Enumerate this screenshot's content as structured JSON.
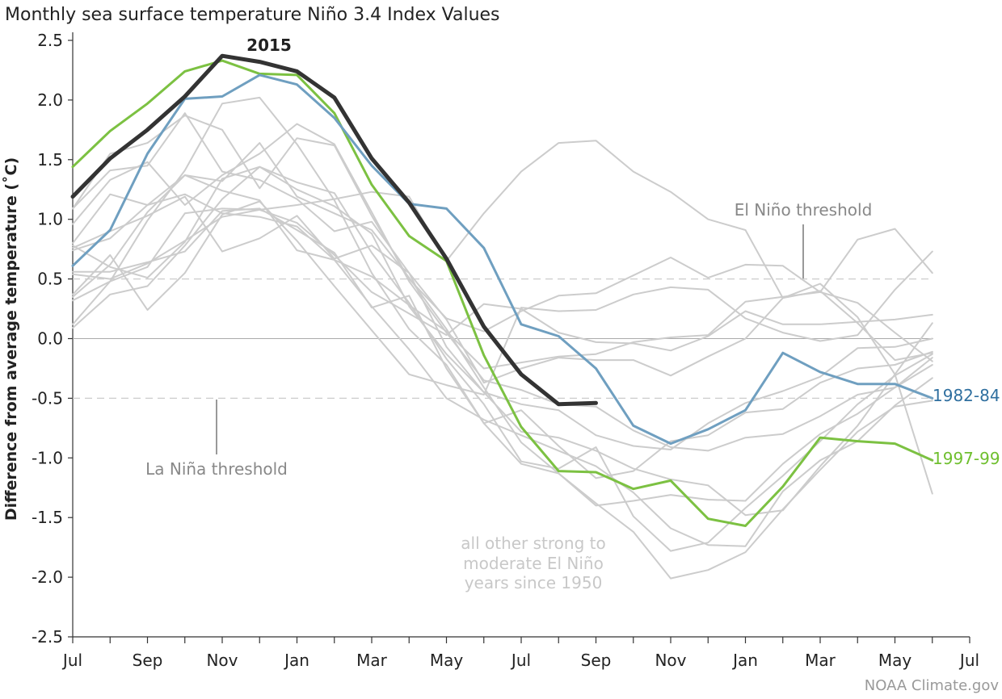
{
  "chart_data": {
    "type": "line",
    "title": "Monthly sea surface temperature Niño 3.4 Index Values",
    "ylabel": "Difference from average temperature (˚C)",
    "xlabel": "",
    "ylim": [
      -2.5,
      2.5
    ],
    "yticks": [
      "2.5",
      "2.0",
      "1.5",
      "1.0",
      "0.5",
      "0.0",
      "-0.5",
      "-1.0",
      "-1.5",
      "-2.0",
      "-2.5"
    ],
    "x_tick_labels": [
      "Jul",
      "Sep",
      "Nov",
      "Jan",
      "Mar",
      "May",
      "Jul",
      "Sep",
      "Nov",
      "Jan",
      "Mar",
      "May",
      "Jul"
    ],
    "months": [
      "Jul",
      "Aug",
      "Sep",
      "Oct",
      "Nov",
      "Dec",
      "Jan",
      "Feb",
      "Mar",
      "Apr",
      "May",
      "Jun",
      "Jul",
      "Aug",
      "Sep",
      "Oct",
      "Nov",
      "Dec",
      "Jan",
      "Feb",
      "Mar",
      "Apr",
      "May",
      "Jun"
    ],
    "grid": false,
    "thresholds": [
      {
        "label": "El Niño threshold",
        "value": 0.5
      },
      {
        "label": "La Niña threshold",
        "value": -0.5
      }
    ],
    "series": [
      {
        "name": "2015",
        "color": "#333333",
        "highlight": true,
        "values": [
          1.19,
          1.51,
          1.75,
          2.03,
          2.37,
          2.32,
          2.24,
          2.02,
          1.51,
          1.14,
          0.67,
          0.1,
          -0.3,
          -0.55,
          -0.54
        ]
      },
      {
        "name": "1982-84",
        "color": "#6f9fc0",
        "highlight": true,
        "values": [
          0.61,
          0.91,
          1.55,
          2.01,
          2.03,
          2.21,
          2.13,
          1.85,
          1.45,
          1.13,
          1.09,
          0.76,
          0.12,
          0.02,
          -0.25,
          -0.73,
          -0.88,
          -0.76,
          -0.6,
          -0.12,
          -0.28,
          -0.38,
          -0.38,
          -0.5
        ]
      },
      {
        "name": "1997-99",
        "color": "#7cc142",
        "highlight": true,
        "values": [
          1.44,
          1.74,
          1.97,
          2.24,
          2.33,
          2.22,
          2.21,
          1.89,
          1.29,
          0.86,
          0.65,
          -0.14,
          -0.74,
          -1.11,
          -1.12,
          -1.26,
          -1.19,
          -1.51,
          -1.57,
          -1.24,
          -0.83,
          -0.86,
          -0.88,
          -1.02
        ]
      },
      {
        "name": "",
        "color": "#cccccc",
        "values": [
          0.12,
          0.48,
          0.99,
          1.41,
          1.97,
          2.02,
          1.63,
          1.16,
          0.55,
          0.08,
          -0.22,
          -0.71,
          -1.05,
          -1.13,
          -1.4,
          -1.36,
          -1.31,
          -1.35,
          -1.36,
          -1.05,
          -0.8,
          -0.63,
          -0.41,
          -0.16
        ]
      },
      {
        "name": "",
        "color": "#cccccc",
        "values": [
          0.8,
          1.21,
          1.12,
          1.21,
          1.05,
          1.02,
          0.94,
          0.66,
          0.27,
          -0.09,
          -0.5,
          -0.68,
          -0.81,
          -0.94,
          -1.07,
          -1.29,
          -1.59,
          -1.73,
          -1.74,
          -1.28,
          -1.02,
          -0.86,
          -0.56,
          -0.33
        ]
      },
      {
        "name": "",
        "color": "#cccccc",
        "values": [
          1.09,
          1.55,
          1.64,
          1.87,
          1.75,
          1.26,
          1.68,
          1.62,
          1.03,
          0.5,
          0.17,
          0.06,
          0.23,
          0.36,
          0.38,
          0.53,
          0.68,
          0.51,
          0.62,
          0.61,
          0.39,
          0.3,
          0.05,
          -0.19
        ]
      },
      {
        "name": "",
        "color": "#cccccc",
        "values": [
          0.35,
          0.62,
          1.06,
          1.37,
          1.32,
          1.64,
          1.19,
          1.05,
          0.91,
          0.51,
          0.08,
          -0.41,
          -0.87,
          -1.13,
          -1.38,
          -1.62,
          -2.01,
          -1.94,
          -1.79,
          -1.43,
          -1.1,
          -0.78,
          -0.57,
          -0.52
        ]
      },
      {
        "name": "",
        "color": "#cccccc",
        "values": [
          0.54,
          0.5,
          0.63,
          0.82,
          1.02,
          1.08,
          1.12,
          1.17,
          1.23,
          1.19,
          0.65,
          1.05,
          1.4,
          1.64,
          1.66,
          1.4,
          1.23,
          1.0,
          0.91,
          0.34,
          0.4,
          0.13,
          -0.18,
          -0.12
        ]
      },
      {
        "name": "",
        "color": "#cccccc",
        "values": [
          0.78,
          0.6,
          0.51,
          0.81,
          1.34,
          1.44,
          1.25,
          1.11,
          0.88,
          0.27,
          -0.13,
          -0.45,
          -0.78,
          -0.83,
          -0.94,
          -1.09,
          -1.18,
          -1.23,
          -1.48,
          -1.44,
          -1.07,
          -0.73,
          -0.3,
          0.13
        ]
      },
      {
        "name": "",
        "color": "#cccccc",
        "values": [
          0.96,
          1.33,
          1.48,
          1.12,
          1.37,
          1.55,
          1.8,
          1.63,
          1.06,
          0.48,
          0.05,
          -0.35,
          -0.43,
          -0.55,
          -0.57,
          -0.77,
          -0.91,
          -0.94,
          -0.83,
          -0.8,
          -0.65,
          -0.47,
          -0.41,
          -0.22
        ]
      },
      {
        "name": "",
        "color": "#cccccc",
        "values": [
          0.37,
          0.7,
          0.24,
          0.55,
          1.04,
          1.15,
          0.82,
          0.44,
          0.07,
          -0.3,
          -0.39,
          -0.47,
          0.26,
          0.23,
          0.24,
          0.37,
          0.43,
          0.41,
          0.17,
          0.05,
          -0.02,
          0.03,
          0.41,
          0.73
        ]
      },
      {
        "name": "",
        "color": "#cccccc",
        "values": [
          0.32,
          0.48,
          0.6,
          1.05,
          1.09,
          1.08,
          0.97,
          0.7,
          0.39,
          0.21,
          0.03,
          0.29,
          0.25,
          0.05,
          -0.03,
          -0.04,
          -0.1,
          0.02,
          0.23,
          0.12,
          0.12,
          0.14,
          0.16,
          0.2
        ]
      },
      {
        "name": "",
        "color": "#cccccc",
        "values": [
          0.09,
          0.37,
          0.44,
          0.78,
          1.17,
          1.44,
          1.31,
          1.22,
          0.72,
          0.3,
          -0.17,
          -0.55,
          -1.03,
          -1.09,
          -0.91,
          -1.49,
          -1.78,
          -1.71,
          -1.42,
          -1.15,
          -0.86,
          -0.55,
          -0.31,
          -0.13
        ]
      },
      {
        "name": "",
        "color": "#cccccc",
        "values": [
          0.56,
          0.56,
          0.64,
          0.73,
          1.07,
          1.09,
          0.91,
          0.72,
          0.26,
          0.36,
          -0.25,
          -0.71,
          -0.6,
          -0.9,
          -1.17,
          -1.11,
          -0.86,
          -0.81,
          -0.62,
          -0.59,
          -0.37,
          -0.25,
          -0.22,
          -0.11
        ]
      },
      {
        "name": "",
        "color": "#cccccc",
        "values": [
          1.09,
          1.41,
          1.45,
          1.89,
          1.4,
          1.33,
          1.17,
          0.9,
          0.98,
          0.55,
          -0.07,
          -0.45,
          -0.55,
          -0.6,
          -0.81,
          -0.9,
          -0.93,
          -0.71,
          -0.54,
          -0.44,
          -0.32,
          -0.08,
          -0.07,
          0.0
        ]
      },
      {
        "name": "",
        "color": "#cccccc",
        "values": [
          0.76,
          0.9,
          1.03,
          1.19,
          0.73,
          0.84,
          1.03,
          0.67,
          0.78,
          0.55,
          0.16,
          -0.37,
          -0.25,
          -0.16,
          -0.18,
          -0.18,
          -0.31,
          -0.15,
          0.0,
          0.34,
          0.46,
          0.18,
          -0.3,
          -1.3
        ]
      },
      {
        "name": "",
        "color": "#cccccc",
        "values": [
          0.74,
          0.84,
          1.12,
          1.37,
          1.24,
          1.16,
          0.74,
          0.66,
          0.52,
          0.28,
          0.06,
          -0.25,
          -0.2,
          -0.15,
          -0.13,
          -0.03,
          0.01,
          0.03,
          0.31,
          0.35,
          0.39,
          0.83,
          0.92,
          0.55
        ]
      }
    ],
    "labels": {
      "highlight_2015": "2015",
      "label_1982": "1982-84",
      "label_1997": "1997-99"
    },
    "annotations": {
      "el_nino": "El Niño threshold",
      "la_nina": "La Niña threshold",
      "others_line1": "all other strong to",
      "others_line2": "moderate El Niño",
      "others_line3": "years since 1950"
    },
    "credit": "NOAA Climate.gov"
  }
}
